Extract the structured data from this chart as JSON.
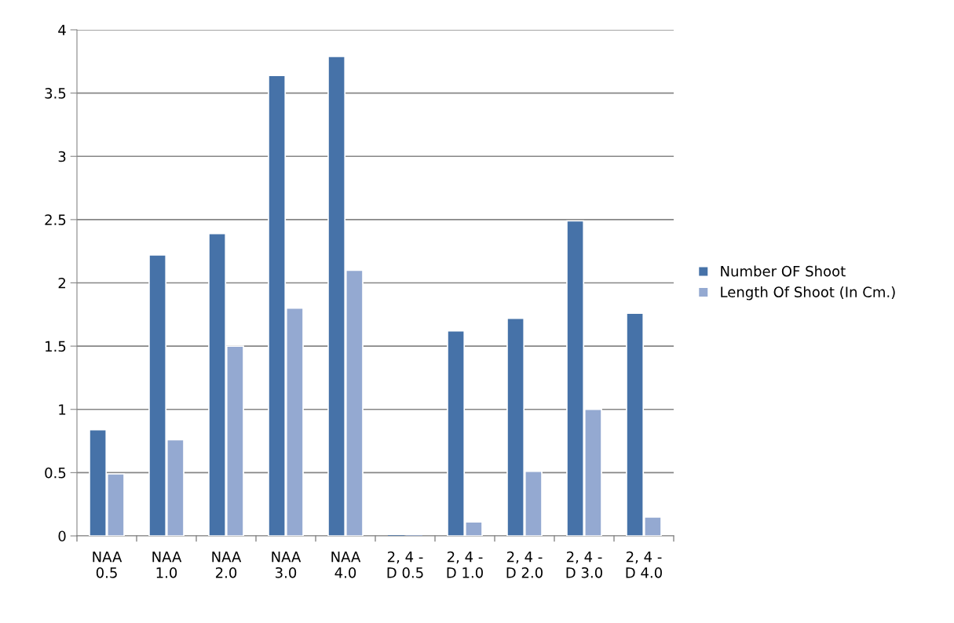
{
  "chart_data": {
    "type": "bar",
    "categories": [
      "NAA\n0.5",
      "NAA\n1.0",
      "NAA\n2.0",
      "NAA\n3.0",
      "NAA\n4.0",
      "2, 4 -\nD 0.5",
      "2, 4 -\nD 1.0",
      "2, 4 -\nD 2.0",
      "2, 4 -\nD 3.0",
      "2, 4 -\nD 4.0"
    ],
    "series": [
      {
        "name": "Number OF Shoot",
        "color": "#4672a8",
        "values": [
          0.84,
          2.22,
          2.39,
          3.64,
          3.79,
          0,
          1.62,
          1.72,
          2.49,
          1.76
        ]
      },
      {
        "name": "Length Of Shoot (In Cm.)",
        "color": "#94a9d1",
        "values": [
          0.49,
          0.76,
          1.5,
          1.8,
          2.1,
          0,
          0.11,
          0.51,
          1.0,
          0.15
        ]
      }
    ],
    "ylim": [
      0,
      4
    ],
    "yticks": [
      0,
      {
        "value": 0.5,
        "label": "0.5"
      },
      1,
      {
        "value": 1.5,
        "label": "1.5"
      },
      2,
      {
        "value": 2.5,
        "label": "2.5"
      },
      3,
      {
        "value": 3.5,
        "label": "3.5"
      },
      4
    ],
    "grid": "y",
    "legend": "right"
  }
}
